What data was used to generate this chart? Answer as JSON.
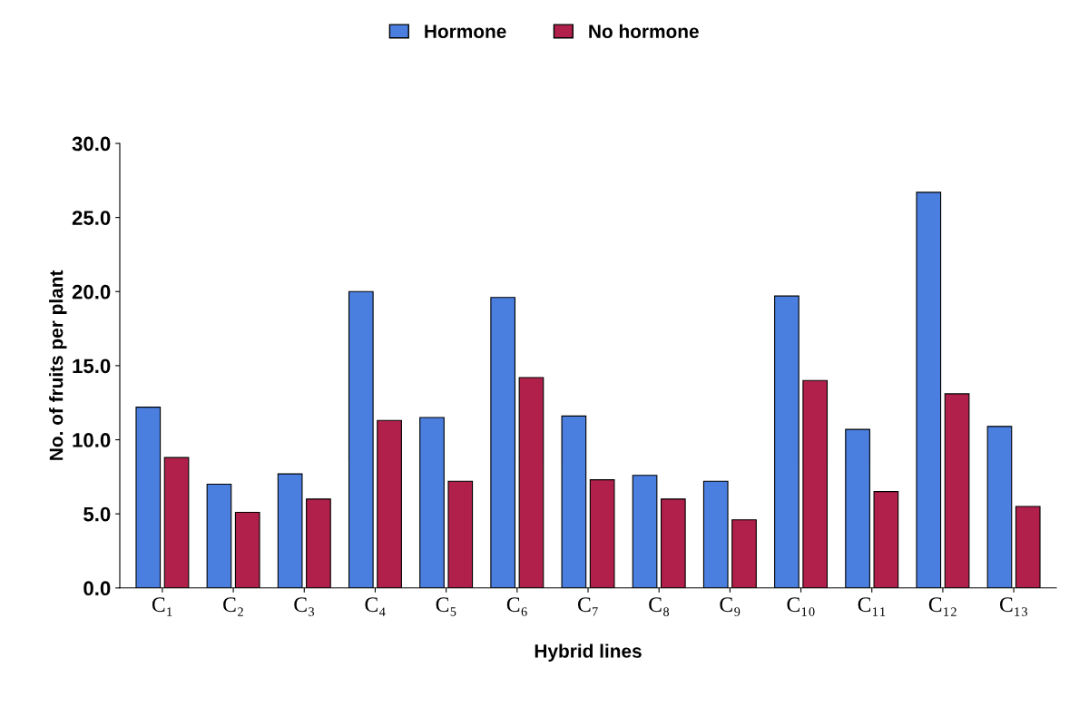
{
  "chart_data": {
    "type": "bar",
    "xlabel": "Hybrid lines",
    "ylabel": "No. of fruits per plant",
    "categories": [
      "C₁",
      "C₂",
      "C₃",
      "C₄",
      "C₅",
      "C₆",
      "C₇",
      "C₈",
      "C₉",
      "C₁₀",
      "C₁₁",
      "C₁₂",
      "C₁₃"
    ],
    "series": [
      {
        "name": "Hormone",
        "color": "#4a7fe0",
        "values": [
          12.2,
          7.0,
          7.7,
          20.0,
          11.5,
          19.6,
          11.6,
          7.6,
          7.2,
          19.7,
          10.7,
          26.7,
          10.9
        ]
      },
      {
        "name": "No hormone",
        "color": "#b0204a",
        "values": [
          8.8,
          5.1,
          6.0,
          11.3,
          7.2,
          14.2,
          7.3,
          6.0,
          4.6,
          14.0,
          6.5,
          13.1,
          5.5
        ]
      }
    ],
    "ylim": [
      0,
      30
    ],
    "yticks": [
      {
        "value": 0,
        "label": "0.0"
      },
      {
        "value": 5,
        "label": "5.0"
      },
      {
        "value": 10,
        "label": "10.0"
      },
      {
        "value": 15,
        "label": "15.0"
      },
      {
        "value": 20,
        "label": "20.0"
      },
      {
        "value": 25,
        "label": "25.0"
      },
      {
        "value": 30,
        "label": "30.0"
      }
    ],
    "legend": "top",
    "grid": false
  }
}
